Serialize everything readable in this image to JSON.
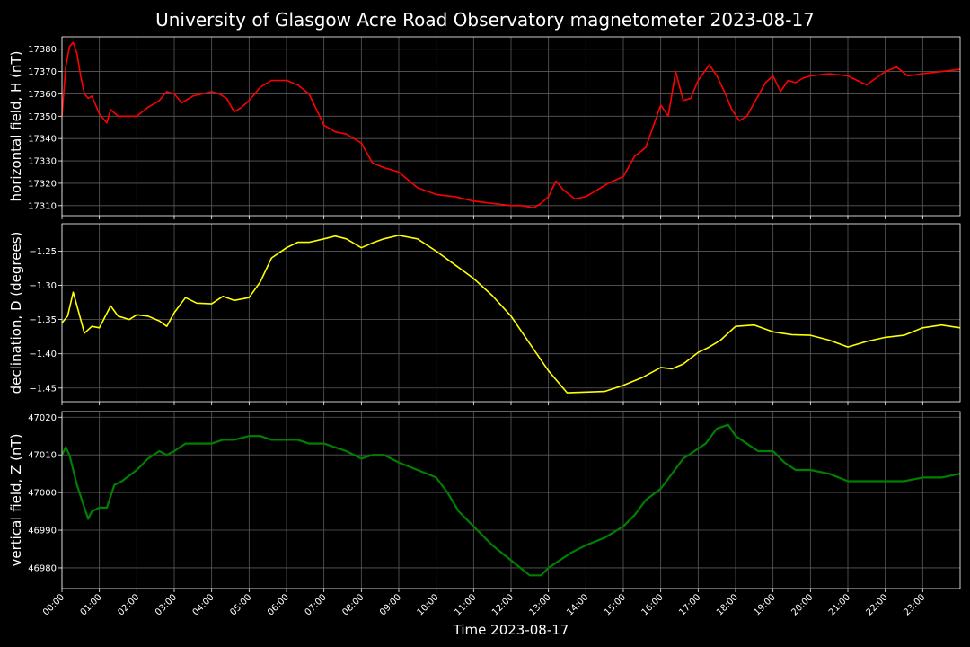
{
  "title": "University of Glasgow Acre Road Observatory magnetometer 2023-08-17",
  "xlabel": "Time 2023-08-17",
  "x_tick_labels": [
    "00:00",
    "01:00",
    "02:00",
    "03:00",
    "04:00",
    "05:00",
    "06:00",
    "07:00",
    "08:00",
    "09:00",
    "10:00",
    "11:00",
    "12:00",
    "13:00",
    "14:00",
    "15:00",
    "16:00",
    "17:00",
    "18:00",
    "19:00",
    "20:00",
    "21:00",
    "22:00",
    "23:00"
  ],
  "colors": {
    "background": "#000000",
    "grid": "#5a5a5a",
    "axes": "#ffffff",
    "H": "#ff0000",
    "D": "#ffff00",
    "Z": "#008000"
  },
  "chart_data": [
    {
      "type": "line",
      "ylabel": "horizontal field, H (nT)",
      "color": "#ff0000",
      "xlim": [
        0,
        24
      ],
      "ylim": [
        17305.5,
        17385.5
      ],
      "yticks": [
        17310,
        17320,
        17330,
        17340,
        17350,
        17360,
        17370,
        17380
      ],
      "grid": true,
      "x": [
        0,
        0.1,
        0.2,
        0.3,
        0.4,
        0.5,
        0.6,
        0.7,
        0.8,
        1.0,
        1.2,
        1.3,
        1.5,
        1.8,
        2.0,
        2.3,
        2.6,
        2.8,
        3.0,
        3.2,
        3.5,
        4.0,
        4.2,
        4.4,
        4.6,
        4.8,
        5.0,
        5.3,
        5.6,
        6.0,
        6.3,
        6.6,
        7.0,
        7.3,
        7.6,
        8.0,
        8.3,
        8.6,
        9.0,
        9.5,
        10.0,
        10.5,
        11.0,
        11.5,
        12.0,
        12.3,
        12.6,
        12.8,
        13.0,
        13.2,
        13.4,
        13.7,
        14.0,
        14.3,
        14.6,
        15.0,
        15.3,
        15.6,
        16.0,
        16.2,
        16.4,
        16.6,
        16.8,
        17.0,
        17.3,
        17.5,
        17.7,
        17.9,
        18.1,
        18.3,
        18.5,
        18.8,
        19.0,
        19.2,
        19.4,
        19.6,
        19.8,
        20.0,
        20.5,
        21.0,
        21.5,
        22.0,
        22.3,
        22.6,
        23.0,
        23.5,
        24.0
      ],
      "values": [
        17350,
        17372,
        17381,
        17383,
        17378,
        17368,
        17360,
        17358,
        17359,
        17351,
        17347,
        17353,
        17350,
        17350,
        17350,
        17354,
        17357,
        17361,
        17360,
        17356,
        17359,
        17361,
        17360,
        17358,
        17352,
        17354,
        17357,
        17363,
        17366,
        17366,
        17364,
        17360,
        17346,
        17343,
        17342,
        17338,
        17329,
        17327,
        17325,
        17318,
        17315,
        17314,
        17312,
        17311,
        17310,
        17310,
        17309,
        17311,
        17314,
        17321,
        17317,
        17313,
        17314,
        17317,
        17320,
        17323,
        17332,
        17336,
        17355,
        17350,
        17370,
        17357,
        17358,
        17366,
        17373,
        17368,
        17361,
        17353,
        17348,
        17350,
        17356,
        17365,
        17368,
        17361,
        17366,
        17365,
        17367,
        17368,
        17369,
        17368,
        17364,
        17370,
        17372,
        17368,
        17369,
        17370,
        17371
      ]
    },
    {
      "type": "line",
      "ylabel": "declination, D (degrees)",
      "color": "#ffff00",
      "xlim": [
        0,
        24
      ],
      "ylim": [
        -1.47,
        -1.21
      ],
      "yticks": [
        -1.25,
        -1.3,
        -1.35,
        -1.4,
        -1.45
      ],
      "ytick_labels": [
        "−1.25",
        "−1.30",
        "−1.35",
        "−1.40",
        "−1.45"
      ],
      "grid": true,
      "x": [
        0,
        0.15,
        0.3,
        0.45,
        0.6,
        0.8,
        1.0,
        1.3,
        1.5,
        1.8,
        2.0,
        2.3,
        2.6,
        2.8,
        3.0,
        3.3,
        3.6,
        4.0,
        4.3,
        4.6,
        5.0,
        5.3,
        5.6,
        6.0,
        6.3,
        6.6,
        7.0,
        7.3,
        7.6,
        8.0,
        8.3,
        8.6,
        9.0,
        9.5,
        10.0,
        10.5,
        11.0,
        11.5,
        12.0,
        12.5,
        13.0,
        13.5,
        14.0,
        14.5,
        15.0,
        15.5,
        16.0,
        16.3,
        16.6,
        17.0,
        17.3,
        17.6,
        18.0,
        18.5,
        19.0,
        19.5,
        20.0,
        20.5,
        21.0,
        21.5,
        22.0,
        22.5,
        23.0,
        23.5,
        24.0
      ],
      "values": [
        -1.355,
        -1.345,
        -1.31,
        -1.34,
        -1.37,
        -1.36,
        -1.362,
        -1.33,
        -1.345,
        -1.35,
        -1.343,
        -1.345,
        -1.352,
        -1.36,
        -1.34,
        -1.318,
        -1.326,
        -1.327,
        -1.316,
        -1.322,
        -1.318,
        -1.295,
        -1.26,
        -1.245,
        -1.237,
        -1.237,
        -1.232,
        -1.228,
        -1.232,
        -1.245,
        -1.238,
        -1.232,
        -1.227,
        -1.232,
        -1.25,
        -1.27,
        -1.29,
        -1.315,
        -1.345,
        -1.385,
        -1.425,
        -1.457,
        -1.456,
        -1.455,
        -1.446,
        -1.435,
        -1.42,
        -1.422,
        -1.415,
        -1.398,
        -1.39,
        -1.38,
        -1.36,
        -1.358,
        -1.368,
        -1.372,
        -1.373,
        -1.38,
        -1.39,
        -1.382,
        -1.376,
        -1.373,
        -1.362,
        -1.358,
        -1.362
      ]
    },
    {
      "type": "line",
      "ylabel": "vertical field, Z (nT)",
      "color": "#008000",
      "xlim": [
        0,
        24
      ],
      "ylim": [
        46974.5,
        47021.5
      ],
      "yticks": [
        46980,
        46990,
        47000,
        47010,
        47020
      ],
      "grid": true,
      "x": [
        0,
        0.1,
        0.2,
        0.4,
        0.6,
        0.7,
        0.8,
        1.0,
        1.2,
        1.4,
        1.6,
        2.0,
        2.3,
        2.6,
        2.8,
        3.0,
        3.3,
        3.6,
        4.0,
        4.3,
        4.6,
        5.0,
        5.3,
        5.6,
        6.0,
        6.3,
        6.6,
        7.0,
        7.3,
        7.6,
        8.0,
        8.3,
        8.6,
        9.0,
        9.5,
        10.0,
        10.3,
        10.6,
        11.0,
        11.5,
        12.0,
        12.5,
        12.8,
        13.0,
        13.3,
        13.6,
        14.0,
        14.5,
        15.0,
        15.3,
        15.6,
        16.0,
        16.3,
        16.6,
        16.9,
        17.2,
        17.5,
        17.8,
        18.0,
        18.3,
        18.6,
        19.0,
        19.3,
        19.6,
        20.0,
        20.5,
        21.0,
        21.5,
        22.0,
        22.5,
        23.0,
        23.5,
        24.0
      ],
      "values": [
        47010,
        47012,
        47010,
        47002,
        46996,
        46993,
        46995,
        46996,
        46996,
        47002,
        47003,
        47006,
        47009,
        47011,
        47010,
        47011,
        47013,
        47013,
        47013,
        47014,
        47014,
        47015,
        47015,
        47014,
        47014,
        47014,
        47013,
        47013,
        47012,
        47011,
        47009,
        47010,
        47010,
        47008,
        47006,
        47004,
        47000,
        46995,
        46991,
        46986,
        46982,
        46978,
        46978,
        46980,
        46982,
        46984,
        46986,
        46988,
        46991,
        46994,
        46998,
        47001,
        47005,
        47009,
        47011,
        47013,
        47017,
        47018,
        47015,
        47013,
        47011,
        47011,
        47008,
        47006,
        47006,
        47005,
        47003,
        47003,
        47003,
        47003,
        47004,
        47004,
        47005
      ]
    }
  ]
}
